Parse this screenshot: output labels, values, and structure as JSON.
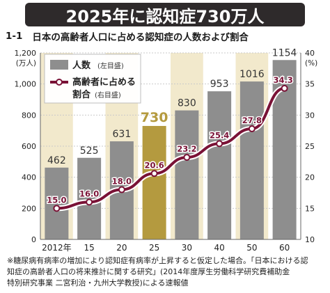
{
  "headline": "2025年に認知症730万人",
  "figure": {
    "number": "1-1",
    "title": "日本の高齢者人口に占める認知症の人数および割合"
  },
  "footnote": [
    "※糖尿病有病率の増加により認知症有病率が上昇すると仮定した場合。「日本における認",
    "知症の高齢者人口の将来推計に関する研究」(2014年度厚生労働科学研究費補助金",
    "特別研究事業 二宮利治・九州大学教授)による速報値"
  ],
  "colors": {
    "headline_bg": "#2e2a2b",
    "bar": "#8e8e8e",
    "bar_highlight": "#b49a3f",
    "band": "#f2e9cc",
    "line": "#7a1236",
    "highlight_label": "#b49a3f"
  },
  "chart_data": {
    "type": "bar",
    "categories": [
      "2012年",
      "15",
      "20",
      "25",
      "30",
      "40",
      "50",
      "60"
    ],
    "highlight_index": 3,
    "series": [
      {
        "name": "人数",
        "legend_label": "人数",
        "legend_note": "(左目盛)",
        "type": "bar",
        "axis": "left",
        "values": [
          462,
          525,
          631,
          730,
          830,
          953,
          1016,
          1154
        ],
        "labels": [
          "462",
          "525",
          "631",
          "730",
          "830",
          "953",
          "1016",
          "1154"
        ]
      },
      {
        "name": "高齢者に占める割合",
        "legend_label_1": "高齢者に占める",
        "legend_label_2": "割合",
        "legend_note": "(右目盛)",
        "type": "line",
        "axis": "right",
        "values": [
          15.0,
          16.0,
          18.0,
          20.6,
          23.2,
          25.4,
          27.8,
          34.3
        ],
        "labels": [
          "15.0",
          "16.0",
          "18.0",
          "20.6",
          "23.2",
          "25.4",
          "27.8",
          "34.3"
        ]
      }
    ],
    "left_axis": {
      "min": 0,
      "max": 1200,
      "ticks": [
        0,
        200,
        400,
        600,
        800,
        1000,
        1200
      ],
      "tick_labels": [
        "0",
        "200",
        "400",
        "600",
        "800",
        "1,000",
        "1,200"
      ],
      "unit": "(万人)"
    },
    "right_axis": {
      "min": 10,
      "max": 40,
      "ticks": [
        10,
        15,
        20,
        25,
        30,
        35,
        40
      ],
      "tick_labels": [
        "10",
        "15",
        "20",
        "25",
        "30",
        "35",
        "40"
      ],
      "unit": "(%)"
    },
    "grid": true,
    "legend_position": "top-left"
  }
}
